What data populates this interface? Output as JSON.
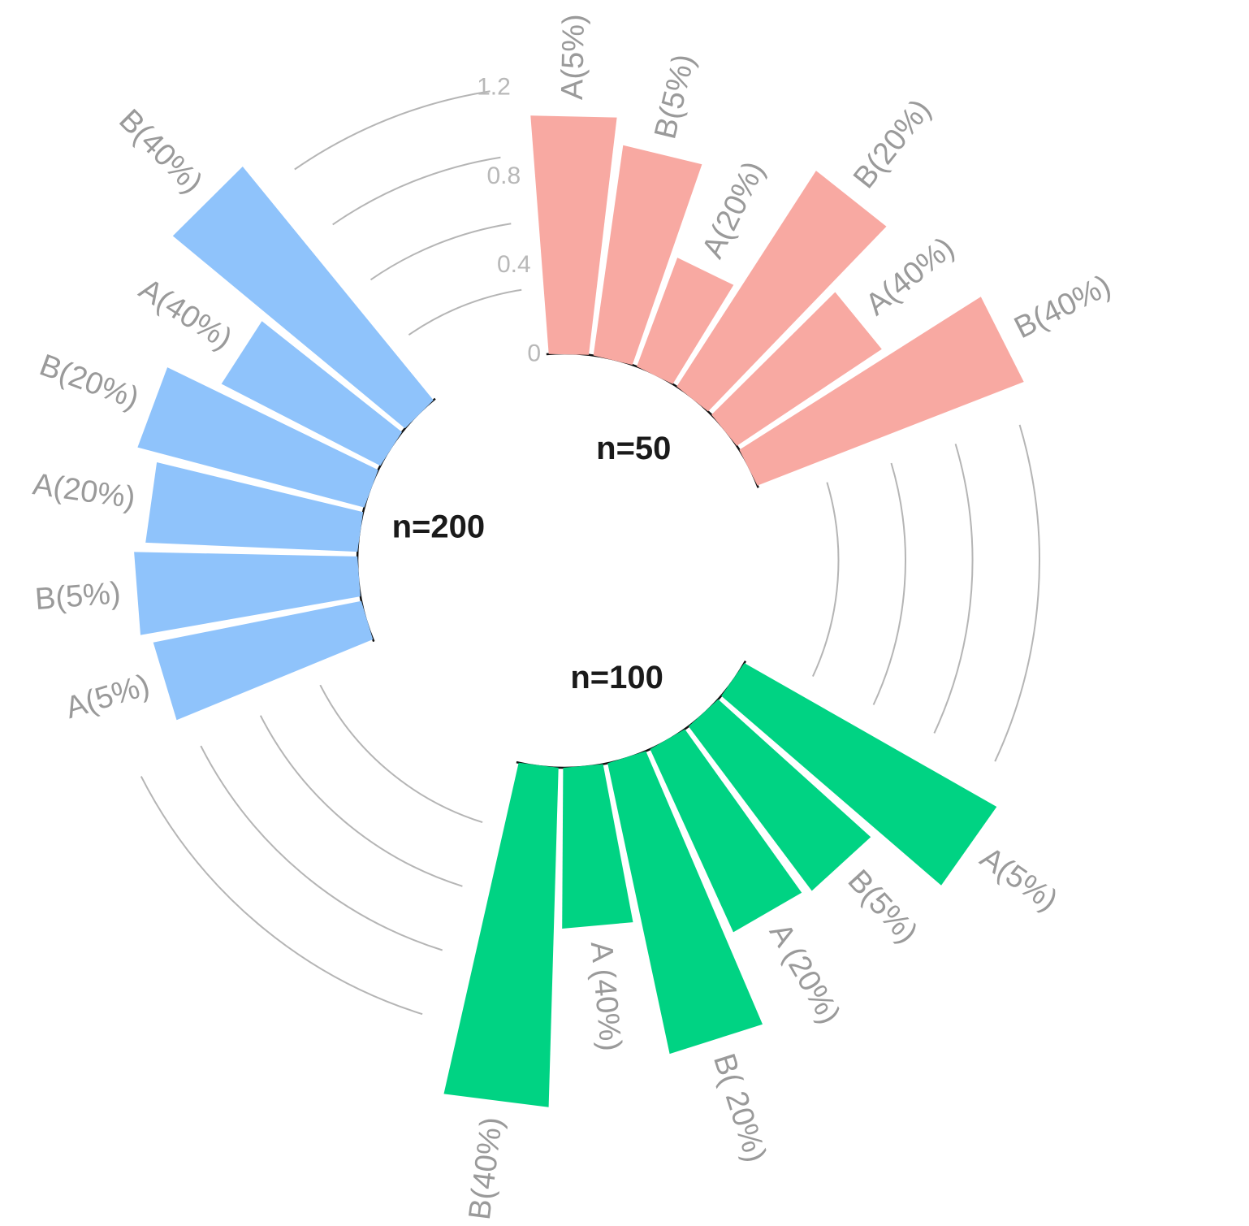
{
  "chart_data": {
    "type": "bar",
    "coordinate_system": "polar",
    "yticks": [
      0,
      0.4,
      0.8,
      1.2
    ],
    "tick_labels": [
      "0",
      "0.4",
      "0.8",
      "1.2"
    ],
    "grid": true,
    "legend": "none",
    "groups": [
      {
        "label": "n=50",
        "color": "#F8A9A2",
        "bars": [
          {
            "label": "A(5%)",
            "value": 1.07
          },
          {
            "label": "B(5%)",
            "value": 0.95
          },
          {
            "label": "A(20%)",
            "value": 0.52
          },
          {
            "label": "B(20%)",
            "value": 1.15
          },
          {
            "label": "A(40%)",
            "value": 0.78
          },
          {
            "label": "B(40%)",
            "value": 1.28
          }
        ]
      },
      {
        "label": "n=100",
        "color": "#00D383",
        "bars": [
          {
            "label": "A(5%)",
            "value": 1.3
          },
          {
            "label": "B(5%)",
            "value": 0.92
          },
          {
            "label": "A (20%)",
            "value": 0.9
          },
          {
            "label": "B( 20%)",
            "value": 1.33
          },
          {
            "label": "A (40%)",
            "value": 0.72
          },
          {
            "label": "B(40%)",
            "value": 1.52
          }
        ]
      },
      {
        "label": "n=200",
        "color": "#8FC3FB",
        "bars": [
          {
            "label": "A(5%)",
            "value": 0.95
          },
          {
            "label": "B(5%)",
            "value": 1.0
          },
          {
            "label": "A(20%)",
            "value": 0.95
          },
          {
            "label": "B(20%)",
            "value": 1.05
          },
          {
            "label": "A(40%)",
            "value": 0.8
          },
          {
            "label": "B(40%)",
            "value": 1.35
          }
        ]
      }
    ]
  }
}
